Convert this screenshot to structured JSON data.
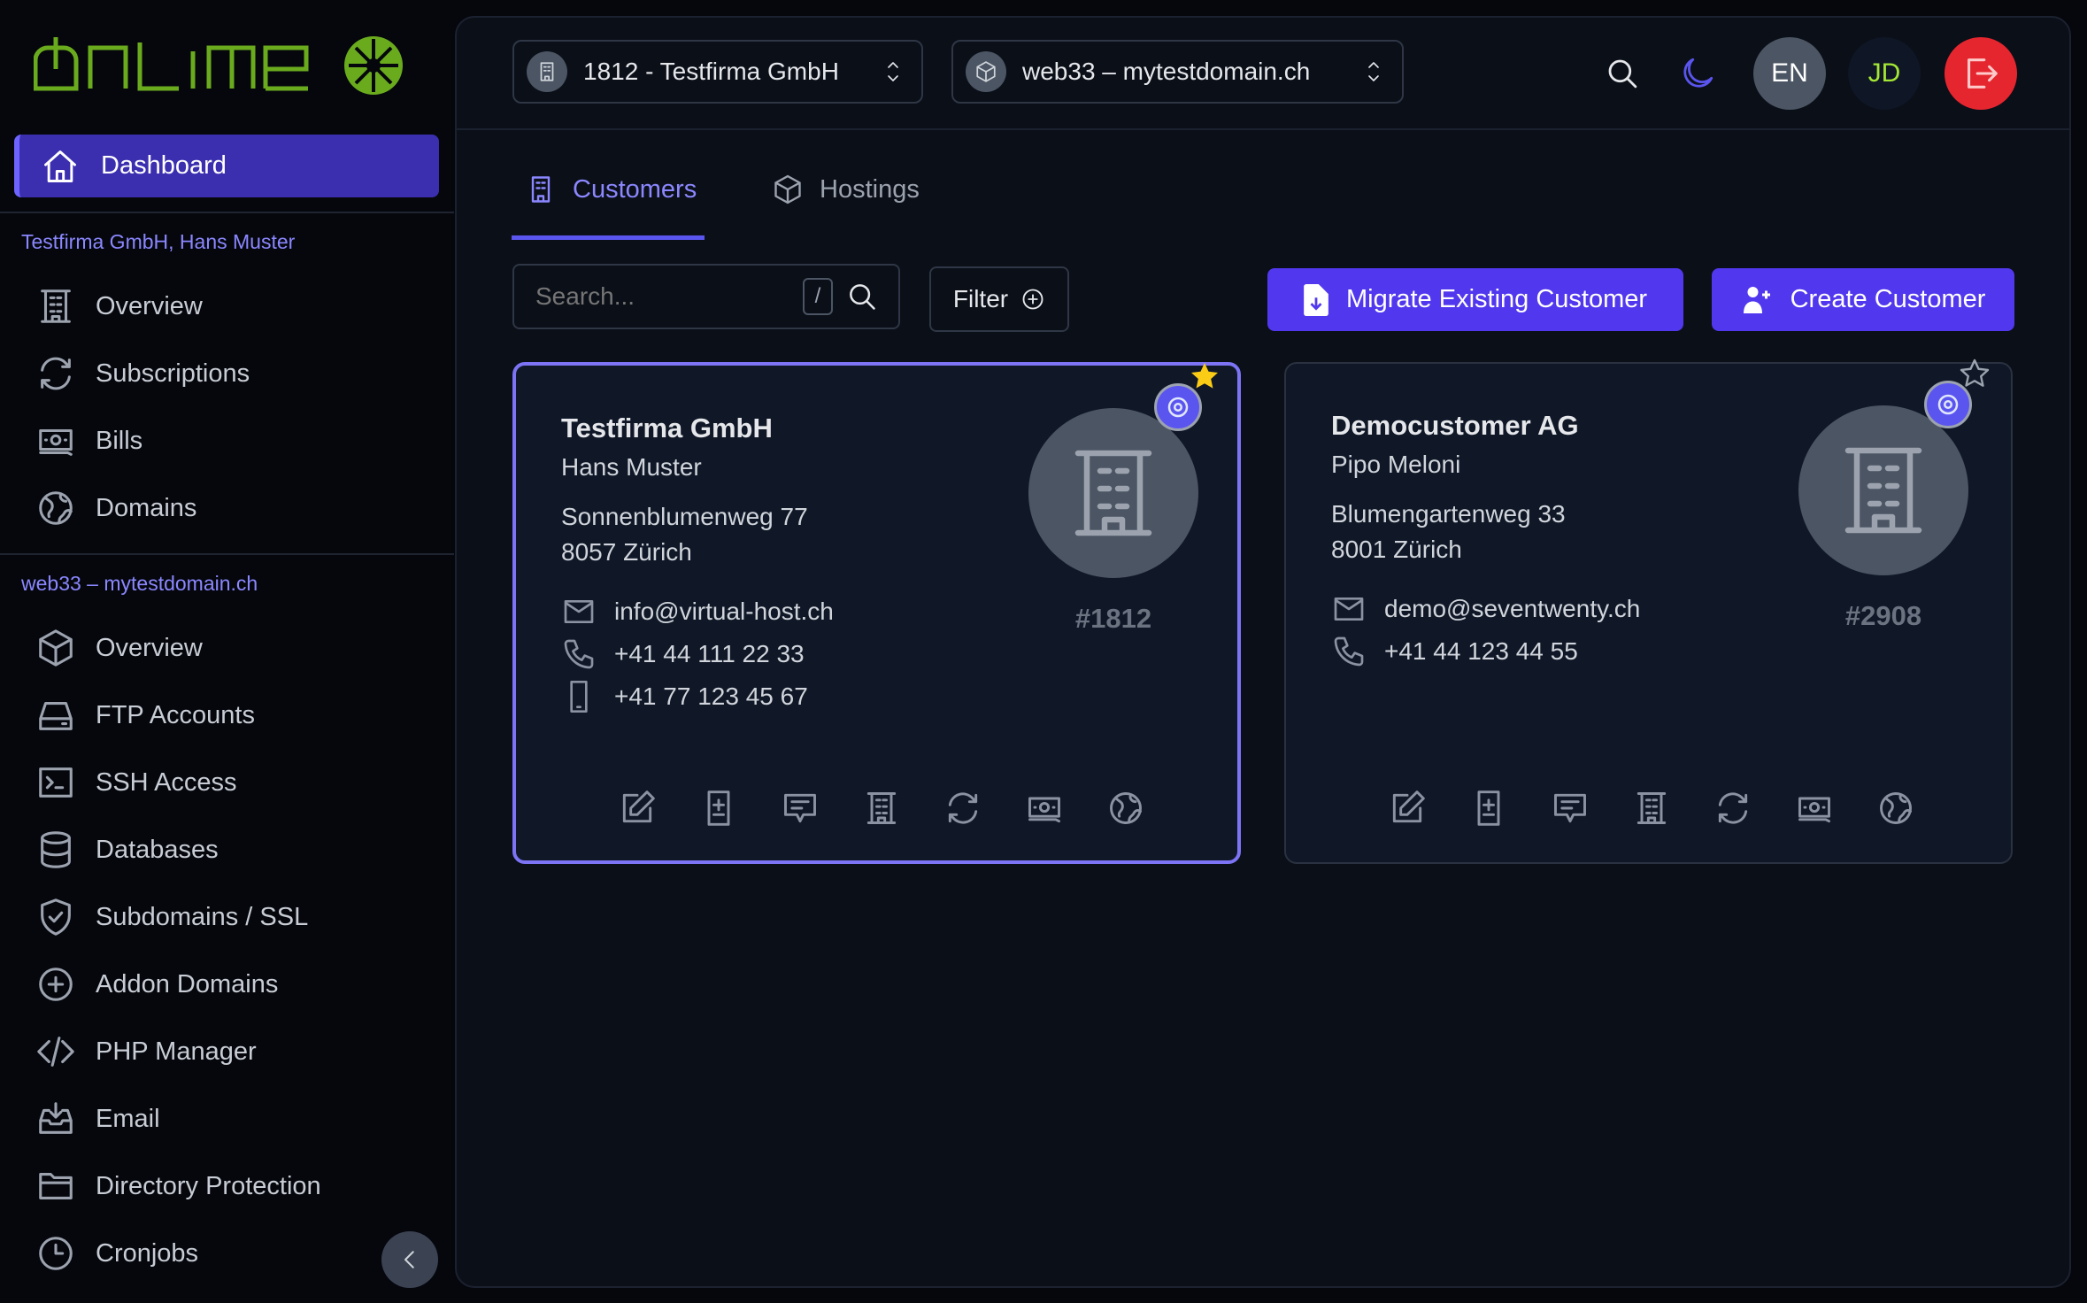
{
  "brand": {
    "logo_text": "onlime",
    "logo_color": "#6aab1e"
  },
  "sidebar": {
    "dashboard": "Dashboard",
    "customer_section": "Testfirma GmbH, Hans Muster",
    "customer_items": [
      {
        "label": "Overview",
        "icon": "building-icon"
      },
      {
        "label": "Subscriptions",
        "icon": "refresh-icon"
      },
      {
        "label": "Bills",
        "icon": "banknote-icon"
      },
      {
        "label": "Domains",
        "icon": "globe-icon"
      }
    ],
    "hosting_section": "web33 – mytestdomain.ch",
    "hosting_items": [
      {
        "label": "Overview",
        "icon": "cube-icon"
      },
      {
        "label": "FTP Accounts",
        "icon": "drive-icon"
      },
      {
        "label": "SSH Access",
        "icon": "terminal-icon"
      },
      {
        "label": "Databases",
        "icon": "database-icon"
      },
      {
        "label": "Subdomains / SSL",
        "icon": "shield-icon"
      },
      {
        "label": "Addon Domains",
        "icon": "plus-circle-icon"
      },
      {
        "label": "PHP Manager",
        "icon": "code-icon"
      },
      {
        "label": "Email",
        "icon": "inbox-icon"
      },
      {
        "label": "Directory Protection",
        "icon": "folder-icon"
      },
      {
        "label": "Cronjobs",
        "icon": "clock-icon"
      }
    ]
  },
  "header": {
    "customer_select": "1812 - Testfirma GmbH",
    "hosting_select": "web33 – mytestdomain.ch",
    "language": "EN",
    "user_initials": "JD"
  },
  "tabs": [
    {
      "label": "Customers",
      "active": true
    },
    {
      "label": "Hostings",
      "active": false
    }
  ],
  "toolbar": {
    "search_placeholder": "Search...",
    "search_shortcut": "/",
    "filter_label": "Filter",
    "migrate_label": "Migrate Existing Customer",
    "create_label": "Create Customer"
  },
  "accent": "#5138ee",
  "customers": [
    {
      "company": "Testfirma GmbH",
      "contact": "Hans Muster",
      "street": "Sonnenblumenweg 77",
      "city": "8057 Zürich",
      "email": "info@virtual-host.ch",
      "phone": "+41 44 111 22 33",
      "mobile": "+41 77 123 45 67",
      "id": "#1812",
      "favorite": true,
      "selected": true
    },
    {
      "company": "Democustomer AG",
      "contact": "Pipo Meloni",
      "street": "Blumengartenweg 33",
      "city": "8001 Zürich",
      "email": "demo@seventwenty.ch",
      "phone": "+41 44 123 44 55",
      "mobile": null,
      "id": "#2908",
      "favorite": false,
      "selected": false
    }
  ]
}
